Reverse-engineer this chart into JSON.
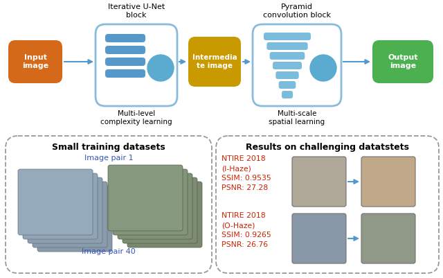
{
  "top_labels": {
    "unet_block": "Iterative U-Net\nblock",
    "pyramid_block": "Pyramid\nconvolution block",
    "multilevel": "Multi-level\ncomplexity learning",
    "multiscale": "Multi-scale\nspatial learning"
  },
  "box_labels": {
    "input": "Input\nimage",
    "intermediate": "Intermedia\nte image",
    "output": "Output\nimage"
  },
  "bottom_left_title": "Small training datasets",
  "bottom_left_sub1": "Image pair 1",
  "bottom_left_sub2": "Image pair 40",
  "bottom_right_title": "Results on challenging datatstets",
  "result1_label": "NTIRE 2018\n(I-Haze)\nSSIM: 0.9535\nPSNR: 27.28",
  "result2_label": "NTIRE 2018\n(O-Haze)\nSSIM: 0.9265\nPSNR: 26.76",
  "colors": {
    "input_box": "#D4691A",
    "intermediate_box": "#C89A00",
    "output_box": "#4CAF50",
    "unet_border": "#88BBDD",
    "pyramid_border": "#88BBDD",
    "bar_fill": "#5599CC",
    "pyr_fill": "#7ABCDC",
    "circle_fill": "#5BAAD0",
    "arrow": "#5599CC",
    "bottom_border": "#999999",
    "result_text": "#CC2200",
    "bottom_left_title": "#000000",
    "bottom_left_sub": "#3355BB",
    "background": "#FFFFFF"
  }
}
